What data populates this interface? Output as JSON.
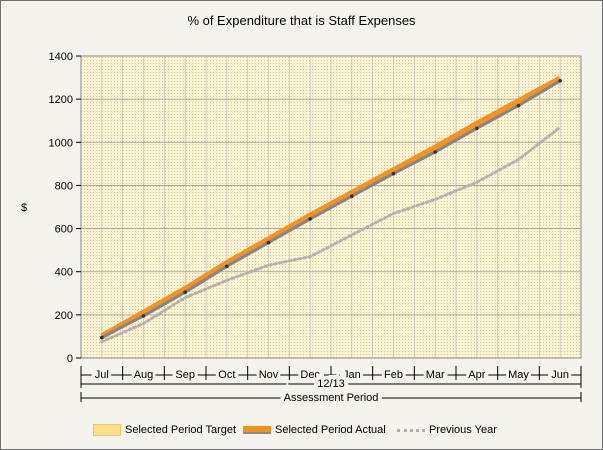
{
  "chart_data": {
    "type": "line",
    "title": "% of Expenditure that is Staff Expenses",
    "ylabel": "$",
    "xlabel": "Assessment Period",
    "group_label": "12/13",
    "categories": [
      "Jul",
      "Aug",
      "Sep",
      "Oct",
      "Nov",
      "Dec",
      "Jan",
      "Feb",
      "Mar",
      "Apr",
      "May",
      "Jun"
    ],
    "ylim": [
      0,
      1400
    ],
    "yticks": [
      0,
      200,
      400,
      600,
      800,
      1000,
      1200,
      1400
    ],
    "grid": true,
    "legend_position": "bottom",
    "series": [
      {
        "name": "Selected Period Target",
        "values": [
          100,
          210,
          320,
          440,
          550,
          660,
          765,
          870,
          975,
          1085,
          1190,
          1295
        ]
      },
      {
        "name": "Selected Period Actual",
        "values": [
          95,
          195,
          305,
          425,
          535,
          645,
          750,
          855,
          955,
          1065,
          1170,
          1285
        ]
      },
      {
        "name": "Previous Year",
        "values": [
          75,
          160,
          280,
          360,
          430,
          470,
          570,
          670,
          735,
          815,
          920,
          1070
        ]
      }
    ],
    "colors": {
      "target": "#f6921e",
      "actual": "#858585",
      "previous": "#b9adad",
      "plot_bg": "#fbf3d3",
      "grid": "#9c9c9c"
    }
  }
}
